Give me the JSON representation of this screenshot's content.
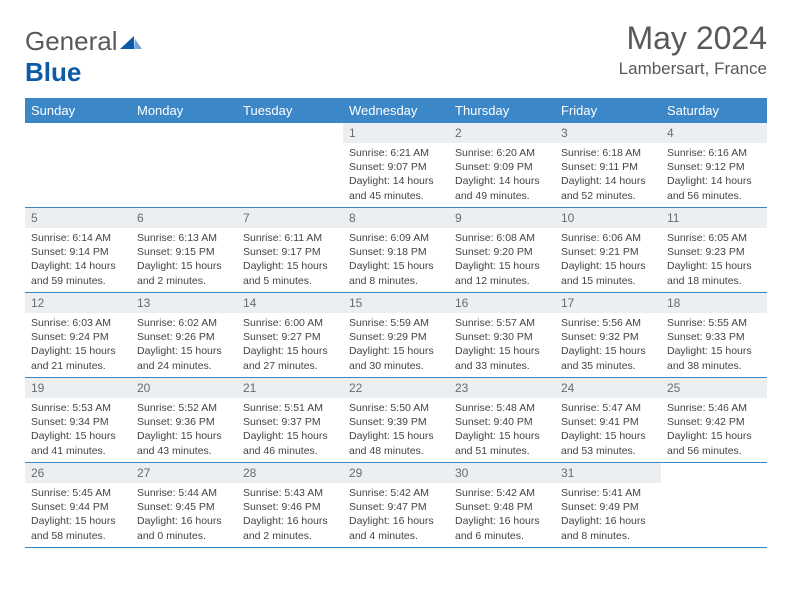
{
  "brand": {
    "part1": "General",
    "part2": "Blue"
  },
  "title": "May 2024",
  "location": "Lambersart, France",
  "colors": {
    "header_bg": "#3c87c7",
    "header_text": "#ffffff",
    "daynum_bg": "#eceff1",
    "daynum_text": "#6b6b6b",
    "body_text": "#444444",
    "rule": "#3c87c7",
    "logo_gray": "#595959",
    "logo_blue": "#0d5aa7"
  },
  "weekdays": [
    "Sunday",
    "Monday",
    "Tuesday",
    "Wednesday",
    "Thursday",
    "Friday",
    "Saturday"
  ],
  "weeks": [
    [
      null,
      null,
      null,
      {
        "n": "1",
        "sr": "6:21 AM",
        "ss": "9:07 PM",
        "dl": "14 hours and 45 minutes."
      },
      {
        "n": "2",
        "sr": "6:20 AM",
        "ss": "9:09 PM",
        "dl": "14 hours and 49 minutes."
      },
      {
        "n": "3",
        "sr": "6:18 AM",
        "ss": "9:11 PM",
        "dl": "14 hours and 52 minutes."
      },
      {
        "n": "4",
        "sr": "6:16 AM",
        "ss": "9:12 PM",
        "dl": "14 hours and 56 minutes."
      }
    ],
    [
      {
        "n": "5",
        "sr": "6:14 AM",
        "ss": "9:14 PM",
        "dl": "14 hours and 59 minutes."
      },
      {
        "n": "6",
        "sr": "6:13 AM",
        "ss": "9:15 PM",
        "dl": "15 hours and 2 minutes."
      },
      {
        "n": "7",
        "sr": "6:11 AM",
        "ss": "9:17 PM",
        "dl": "15 hours and 5 minutes."
      },
      {
        "n": "8",
        "sr": "6:09 AM",
        "ss": "9:18 PM",
        "dl": "15 hours and 8 minutes."
      },
      {
        "n": "9",
        "sr": "6:08 AM",
        "ss": "9:20 PM",
        "dl": "15 hours and 12 minutes."
      },
      {
        "n": "10",
        "sr": "6:06 AM",
        "ss": "9:21 PM",
        "dl": "15 hours and 15 minutes."
      },
      {
        "n": "11",
        "sr": "6:05 AM",
        "ss": "9:23 PM",
        "dl": "15 hours and 18 minutes."
      }
    ],
    [
      {
        "n": "12",
        "sr": "6:03 AM",
        "ss": "9:24 PM",
        "dl": "15 hours and 21 minutes."
      },
      {
        "n": "13",
        "sr": "6:02 AM",
        "ss": "9:26 PM",
        "dl": "15 hours and 24 minutes."
      },
      {
        "n": "14",
        "sr": "6:00 AM",
        "ss": "9:27 PM",
        "dl": "15 hours and 27 minutes."
      },
      {
        "n": "15",
        "sr": "5:59 AM",
        "ss": "9:29 PM",
        "dl": "15 hours and 30 minutes."
      },
      {
        "n": "16",
        "sr": "5:57 AM",
        "ss": "9:30 PM",
        "dl": "15 hours and 33 minutes."
      },
      {
        "n": "17",
        "sr": "5:56 AM",
        "ss": "9:32 PM",
        "dl": "15 hours and 35 minutes."
      },
      {
        "n": "18",
        "sr": "5:55 AM",
        "ss": "9:33 PM",
        "dl": "15 hours and 38 minutes."
      }
    ],
    [
      {
        "n": "19",
        "sr": "5:53 AM",
        "ss": "9:34 PM",
        "dl": "15 hours and 41 minutes."
      },
      {
        "n": "20",
        "sr": "5:52 AM",
        "ss": "9:36 PM",
        "dl": "15 hours and 43 minutes."
      },
      {
        "n": "21",
        "sr": "5:51 AM",
        "ss": "9:37 PM",
        "dl": "15 hours and 46 minutes."
      },
      {
        "n": "22",
        "sr": "5:50 AM",
        "ss": "9:39 PM",
        "dl": "15 hours and 48 minutes."
      },
      {
        "n": "23",
        "sr": "5:48 AM",
        "ss": "9:40 PM",
        "dl": "15 hours and 51 minutes."
      },
      {
        "n": "24",
        "sr": "5:47 AM",
        "ss": "9:41 PM",
        "dl": "15 hours and 53 minutes."
      },
      {
        "n": "25",
        "sr": "5:46 AM",
        "ss": "9:42 PM",
        "dl": "15 hours and 56 minutes."
      }
    ],
    [
      {
        "n": "26",
        "sr": "5:45 AM",
        "ss": "9:44 PM",
        "dl": "15 hours and 58 minutes."
      },
      {
        "n": "27",
        "sr": "5:44 AM",
        "ss": "9:45 PM",
        "dl": "16 hours and 0 minutes."
      },
      {
        "n": "28",
        "sr": "5:43 AM",
        "ss": "9:46 PM",
        "dl": "16 hours and 2 minutes."
      },
      {
        "n": "29",
        "sr": "5:42 AM",
        "ss": "9:47 PM",
        "dl": "16 hours and 4 minutes."
      },
      {
        "n": "30",
        "sr": "5:42 AM",
        "ss": "9:48 PM",
        "dl": "16 hours and 6 minutes."
      },
      {
        "n": "31",
        "sr": "5:41 AM",
        "ss": "9:49 PM",
        "dl": "16 hours and 8 minutes."
      },
      null
    ]
  ],
  "labels": {
    "sunrise": "Sunrise:",
    "sunset": "Sunset:",
    "daylight": "Daylight:"
  }
}
